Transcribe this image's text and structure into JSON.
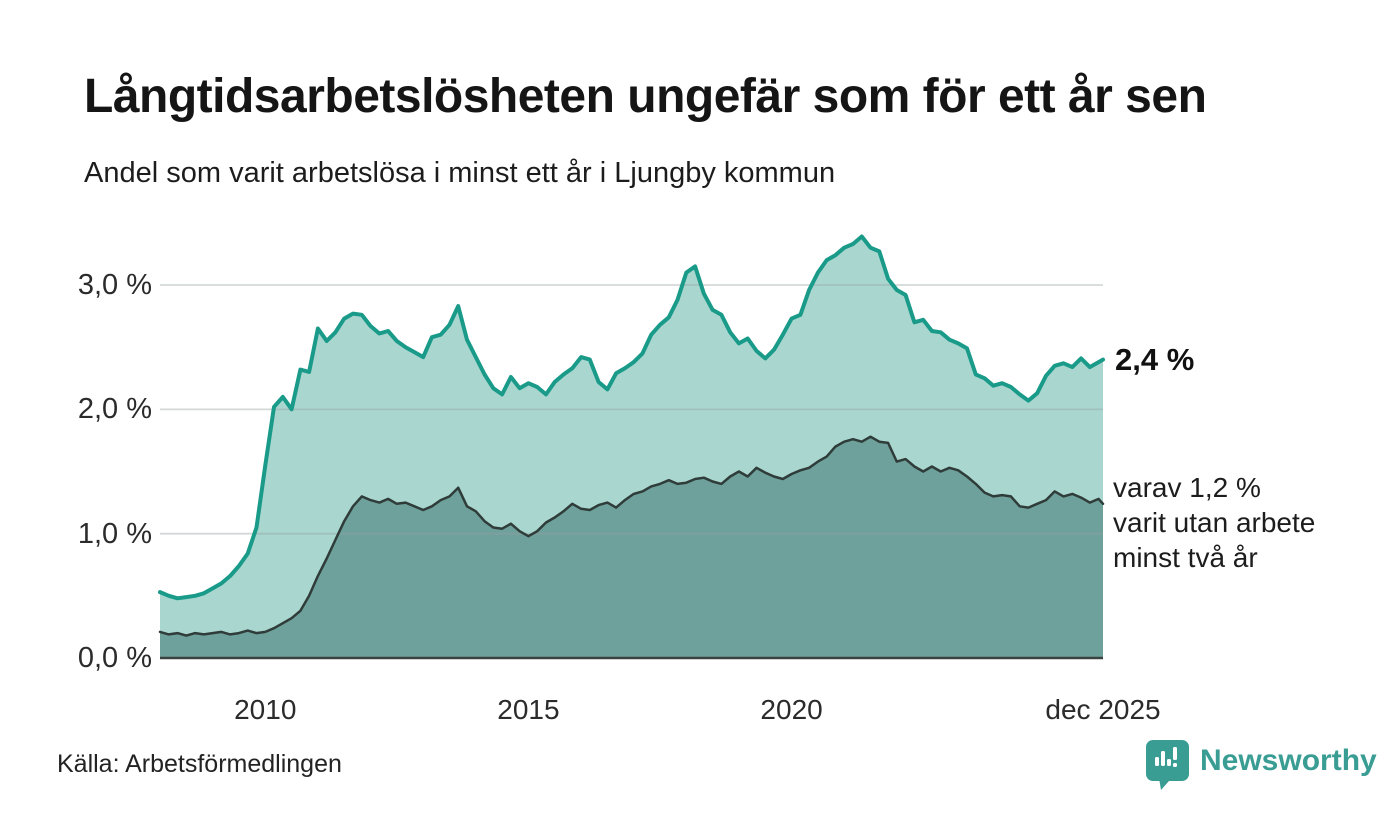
{
  "header": {
    "title": "Långtidsarbetslösheten ungefär som för ett år sen",
    "subtitle": "Andel som varit arbetslösa i minst ett år i Ljungby kommun"
  },
  "annotations": {
    "primary_label": "2,4 %",
    "secondary_note": "varav 1,2 %\nvarit utan arbete\nminst två år"
  },
  "footer": {
    "source": "Källa: Arbetsförmedlingen",
    "brand": "Newsworthy"
  },
  "colors": {
    "series1_line": "#1a9a89",
    "series1_fill": "#a9d7d0",
    "series2_line": "#2f3c39",
    "series2_fill": "#6ea19b",
    "gridline": "rgba(150,158,160,0.4)",
    "axis_line": "#3c4240",
    "brand_teal": "#3a9d94",
    "text_dark": "#151515"
  },
  "chart_data": {
    "type": "area",
    "title": "Långtidsarbetslösheten ungefär som för ett år sen",
    "subtitle": "Andel som varit arbetslösa i minst ett år i Ljungby kommun",
    "unit": "%",
    "x_start": 2008.0,
    "x_end": 2025.917,
    "x_step_years": 0.166667,
    "ylim": [
      0,
      3.55
    ],
    "grid": true,
    "x_ticks": [
      {
        "label": "2010",
        "year": 2010
      },
      {
        "label": "2015",
        "year": 2015
      },
      {
        "label": "2020",
        "year": 2020
      },
      {
        "label": "dec 2025",
        "year": 2025.917
      }
    ],
    "y_ticks": [
      {
        "label": "0,0 %",
        "value": 0
      },
      {
        "label": "1,0 %",
        "value": 1
      },
      {
        "label": "2,0 %",
        "value": 2
      },
      {
        "label": "3,0 %",
        "value": 3
      }
    ],
    "series": [
      {
        "name": "Arbetslösa minst ett år",
        "end_label": "2,4 %",
        "end_value": 2.4,
        "values": [
          0.53,
          0.5,
          0.48,
          0.49,
          0.5,
          0.52,
          0.56,
          0.6,
          0.66,
          0.74,
          0.84,
          1.05,
          1.55,
          2.02,
          2.1,
          2.0,
          2.32,
          2.3,
          2.65,
          2.55,
          2.62,
          2.73,
          2.77,
          2.76,
          2.67,
          2.61,
          2.63,
          2.55,
          2.5,
          2.46,
          2.42,
          2.58,
          2.6,
          2.68,
          2.83,
          2.56,
          2.42,
          2.28,
          2.17,
          2.12,
          2.26,
          2.17,
          2.21,
          2.18,
          2.12,
          2.22,
          2.28,
          2.33,
          2.42,
          2.4,
          2.22,
          2.16,
          2.29,
          2.33,
          2.38,
          2.45,
          2.6,
          2.68,
          2.74,
          2.88,
          3.1,
          3.15,
          2.93,
          2.8,
          2.76,
          2.62,
          2.53,
          2.57,
          2.47,
          2.41,
          2.48,
          2.6,
          2.73,
          2.76,
          2.96,
          3.1,
          3.2,
          3.24,
          3.3,
          3.33,
          3.39,
          3.3,
          3.27,
          3.05,
          2.96,
          2.92,
          2.7,
          2.72,
          2.63,
          2.62,
          2.56,
          2.53,
          2.49,
          2.28,
          2.25,
          2.19,
          2.21,
          2.18,
          2.12,
          2.07,
          2.13,
          2.27,
          2.35,
          2.37,
          2.34,
          2.41,
          2.34,
          2.38,
          2.4
        ]
      },
      {
        "name": "Varav utan arbete minst två år",
        "end_label": "varav 1,2 %",
        "end_value": 1.2,
        "values": [
          0.21,
          0.19,
          0.2,
          0.18,
          0.2,
          0.19,
          0.2,
          0.21,
          0.19,
          0.2,
          0.22,
          0.2,
          0.21,
          0.24,
          0.28,
          0.32,
          0.38,
          0.5,
          0.66,
          0.8,
          0.95,
          1.1,
          1.22,
          1.3,
          1.27,
          1.25,
          1.28,
          1.24,
          1.25,
          1.22,
          1.19,
          1.22,
          1.27,
          1.3,
          1.37,
          1.22,
          1.18,
          1.1,
          1.05,
          1.04,
          1.08,
          1.02,
          0.98,
          1.02,
          1.09,
          1.13,
          1.18,
          1.24,
          1.2,
          1.19,
          1.23,
          1.25,
          1.21,
          1.27,
          1.32,
          1.34,
          1.38,
          1.4,
          1.43,
          1.4,
          1.41,
          1.44,
          1.45,
          1.42,
          1.4,
          1.46,
          1.5,
          1.46,
          1.53,
          1.49,
          1.46,
          1.44,
          1.48,
          1.51,
          1.53,
          1.58,
          1.62,
          1.7,
          1.74,
          1.76,
          1.74,
          1.78,
          1.74,
          1.73,
          1.58,
          1.6,
          1.54,
          1.5,
          1.54,
          1.5,
          1.53,
          1.51,
          1.46,
          1.4,
          1.33,
          1.3,
          1.31,
          1.3,
          1.22,
          1.21,
          1.24,
          1.27,
          1.34,
          1.3,
          1.32,
          1.29,
          1.25,
          1.28,
          1.24
        ]
      }
    ]
  }
}
